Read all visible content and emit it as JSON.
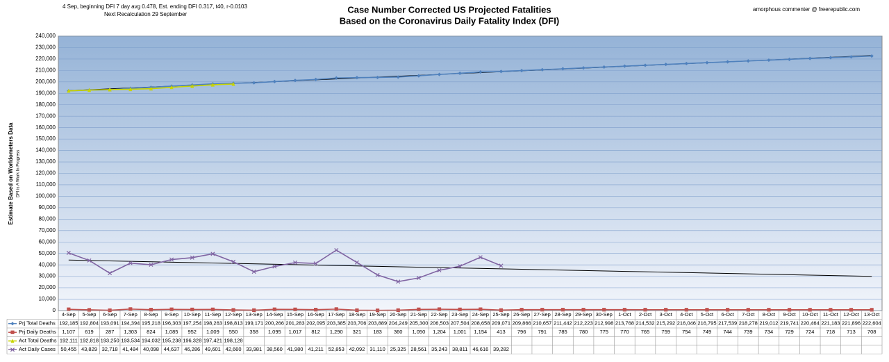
{
  "chart_data": {
    "type": "line",
    "title": "Case Number Corrected US Projected Fatalities",
    "subtitle": "Based on the Coronavirus Daily Fatality Index (DFI)",
    "annotations": [
      "4 Sep, beginning DFI  7 day avg 0.478, Est. ending DFI  0.317,  t40,  r-0.0103",
      "Next Recalculation  29 September",
      "amorphous commenter  @  freerepublic.com"
    ],
    "y_label": "Estimate Based on Worldometers Data",
    "y_sublabel": "DFI is A Work In Progress",
    "categories": [
      "4-Sep",
      "5-Sep",
      "6-Sep",
      "7-Sep",
      "8-Sep",
      "9-Sep",
      "10-Sep",
      "11-Sep",
      "12-Sep",
      "13-Sep",
      "14-Sep",
      "15-Sep",
      "16-Sep",
      "17-Sep",
      "18-Sep",
      "19-Sep",
      "20-Sep",
      "21-Sep",
      "22-Sep",
      "23-Sep",
      "24-Sep",
      "25-Sep",
      "26-Sep",
      "27-Sep",
      "28-Sep",
      "29-Sep",
      "30-Sep",
      "1-Oct",
      "2-Oct",
      "3-Oct",
      "4-Oct",
      "5-Oct",
      "6-Oct",
      "7-Oct",
      "8-Oct",
      "9-Oct",
      "10-Oct",
      "11-Oct",
      "12-Oct",
      "13-Oct"
    ],
    "series": [
      {
        "name": "Prj Total Deaths",
        "color": "#4f81bd",
        "marker": "diamond",
        "trendline": true,
        "values": [
          192185,
          192804,
          193091,
          194394,
          195218,
          196303,
          197254,
          198263,
          198813,
          199171,
          200266,
          201283,
          202095,
          203385,
          203706,
          203889,
          204249,
          205300,
          206503,
          207504,
          208658,
          209071,
          209866,
          210657,
          211442,
          212223,
          212998,
          213768,
          214532,
          215292,
          216046,
          216795,
          217539,
          218278,
          219012,
          219741,
          220464,
          221183,
          221896,
          222604
        ],
        "value_labels": [
          "192,185",
          "192,804",
          "193,091",
          "194,394",
          "195,218",
          "196,303",
          "197,254",
          "198,263",
          "198,813",
          "199,171",
          "200,266",
          "201,283",
          "202,095",
          "203,385",
          "203,706",
          "203,889",
          "204,249",
          "205,300",
          "206,503",
          "207,504",
          "208,658",
          "209,071",
          "209,866",
          "210,657",
          "211,442",
          "212,223",
          "212,998",
          "213,768",
          "214,532",
          "215,292",
          "216,046",
          "216,795",
          "217,539",
          "218,278",
          "219,012",
          "219,741",
          "220,464",
          "221,183",
          "221,896",
          "222,604"
        ]
      },
      {
        "name": "Prj Daily Deaths",
        "color": "#c0504d",
        "marker": "square",
        "values": [
          1107,
          619,
          287,
          1303,
          824,
          1085,
          952,
          1009,
          550,
          358,
          1095,
          1017,
          812,
          1290,
          321,
          183,
          360,
          1050,
          1204,
          1001,
          1154,
          413,
          796,
          791,
          785,
          780,
          775,
          770,
          765,
          759,
          754,
          749,
          744,
          739,
          734,
          729,
          724,
          718,
          713,
          708
        ],
        "value_labels": [
          "1,107",
          "619",
          "287",
          "1,303",
          "824",
          "1,085",
          "952",
          "1,009",
          "550",
          "358",
          "1,095",
          "1,017",
          "812",
          "1,290",
          "321",
          "183",
          "360",
          "1,050",
          "1,204",
          "1,001",
          "1,154",
          "413",
          "796",
          "791",
          "785",
          "780",
          "775",
          "770",
          "765",
          "759",
          "754",
          "749",
          "744",
          "739",
          "734",
          "729",
          "724",
          "718",
          "713",
          "708"
        ]
      },
      {
        "name": "Act Total Deaths",
        "color": "#c8d400",
        "marker": "triangle",
        "values": [
          192111,
          192818,
          193250,
          193534,
          194032,
          195238,
          196328,
          197421,
          198128,
          null,
          null,
          null,
          null,
          null,
          null,
          null,
          null,
          null,
          null,
          null,
          null,
          null,
          null,
          null,
          null,
          null,
          null,
          null,
          null,
          null,
          null,
          null,
          null,
          null,
          null,
          null,
          null,
          null,
          null,
          null
        ],
        "value_labels": [
          "192,111",
          "192,818",
          "193,250",
          "193,534",
          "194,032",
          "195,238",
          "196,328",
          "197,421",
          "198,128",
          null,
          null,
          null,
          null,
          null,
          null,
          null,
          null,
          null,
          null,
          null,
          null,
          null,
          null,
          null,
          null,
          null,
          null,
          null,
          null,
          null,
          null,
          null,
          null,
          null,
          null,
          null,
          null,
          null,
          null,
          null
        ]
      },
      {
        "name": "Act Daily Cases",
        "color": "#8064a2",
        "marker": "x",
        "trendline": true,
        "values": [
          50455,
          43829,
          32718,
          41484,
          40098,
          44637,
          46286,
          49601,
          42660,
          33981,
          38560,
          41980,
          41211,
          52853,
          42092,
          31110,
          25325,
          28561,
          35243,
          38811,
          46616,
          39282,
          null,
          null,
          null,
          null,
          null,
          null,
          null,
          null,
          null,
          null,
          null,
          null,
          null,
          null,
          null,
          null,
          null,
          null
        ],
        "value_labels": [
          "50,455",
          "43,829",
          "32,718",
          "41,484",
          "40,098",
          "44,637",
          "46,286",
          "49,601",
          "42,660",
          "33,981",
          "38,560",
          "41,980",
          "41,211",
          "52,853",
          "42,092",
          "31,110",
          "25,325",
          "28,561",
          "35,243",
          "38,811",
          "46,616",
          "39,282",
          null,
          null,
          null,
          null,
          null,
          null,
          null,
          null,
          null,
          null,
          null,
          null,
          null,
          null,
          null,
          null,
          null,
          null
        ]
      }
    ],
    "ylim": [
      0,
      240000
    ],
    "yticks": [
      0,
      {
        "value": 10000,
        "label": "10,000"
      },
      {
        "value": 20000,
        "label": "20,000"
      },
      {
        "value": 30000,
        "label": "30,000"
      },
      {
        "value": 40000,
        "label": "40,000"
      },
      {
        "value": 50000,
        "label": "50,000"
      },
      {
        "value": 60000,
        "label": "60,000"
      },
      {
        "value": 70000,
        "label": "70,000"
      },
      {
        "value": 80000,
        "label": "80,000"
      },
      {
        "value": 90000,
        "label": "90,000"
      },
      {
        "value": 100000,
        "label": "100,000"
      },
      {
        "value": 110000,
        "label": "110,000"
      },
      {
        "value": 120000,
        "label": "120,000"
      },
      {
        "value": 130000,
        "label": "130,000"
      },
      {
        "value": 140000,
        "label": "140,000"
      },
      {
        "value": 150000,
        "label": "150,000"
      },
      {
        "value": 160000,
        "label": "160,000"
      },
      {
        "value": 170000,
        "label": "170,000"
      },
      {
        "value": 180000,
        "label": "180,000"
      },
      {
        "value": 190000,
        "label": "190,000"
      },
      {
        "value": 200000,
        "label": "200,000"
      },
      {
        "value": 210000,
        "label": "210,000"
      },
      {
        "value": 220000,
        "label": "220,000"
      },
      {
        "value": 230000,
        "label": "230,000"
      },
      {
        "value": 240000,
        "label": "240,000"
      }
    ],
    "grid": true
  }
}
